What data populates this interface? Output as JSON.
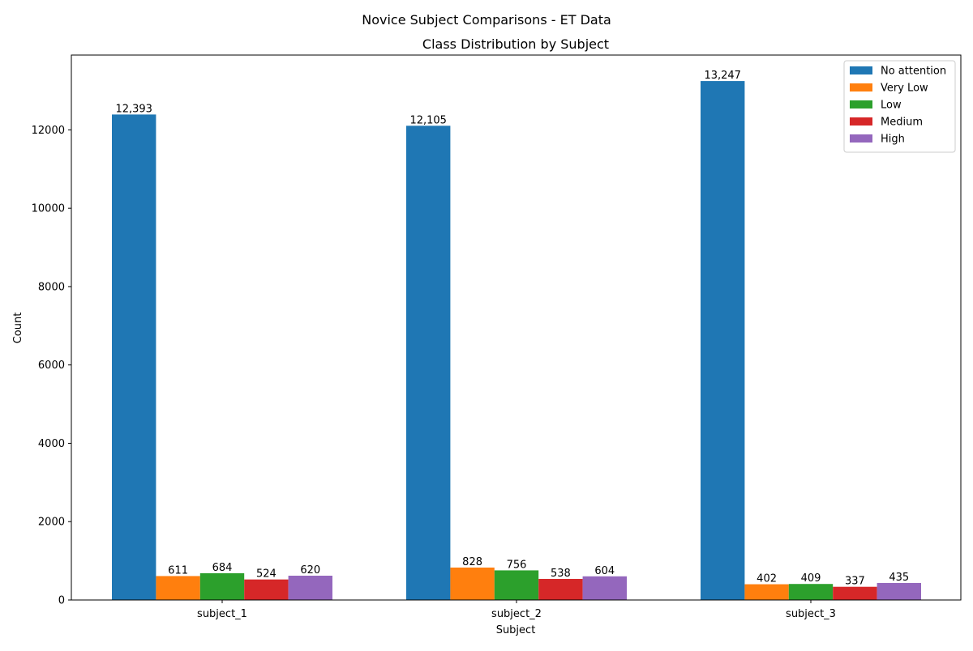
{
  "figure": {
    "suptitle": "Novice Subject Comparisons - ET Data"
  },
  "chart_data": {
    "type": "bar",
    "title": "Class Distribution by Subject",
    "xlabel": "Subject",
    "ylabel": "Count",
    "categories": [
      "subject_1",
      "subject_2",
      "subject_3"
    ],
    "ylim": [
      0,
      13910
    ],
    "yticks": [
      0,
      2000,
      4000,
      6000,
      8000,
      10000,
      12000
    ],
    "grid": false,
    "legend_position": "top-right",
    "series": [
      {
        "name": "No attention",
        "color": "#1f77b4",
        "values": [
          12393,
          12105,
          13247
        ],
        "labels": [
          "12,393",
          "12,105",
          "13,247"
        ]
      },
      {
        "name": "Very Low",
        "color": "#ff7f0e",
        "values": [
          611,
          828,
          402
        ],
        "labels": [
          "611",
          "828",
          "402"
        ]
      },
      {
        "name": "Low",
        "color": "#2ca02c",
        "values": [
          684,
          756,
          409
        ],
        "labels": [
          "684",
          "756",
          "409"
        ]
      },
      {
        "name": "Medium",
        "color": "#d62728",
        "values": [
          524,
          538,
          337
        ],
        "labels": [
          "524",
          "538",
          "337"
        ]
      },
      {
        "name": "High",
        "color": "#9467bd",
        "values": [
          620,
          604,
          435
        ],
        "labels": [
          "620",
          "604",
          "435"
        ]
      }
    ]
  }
}
